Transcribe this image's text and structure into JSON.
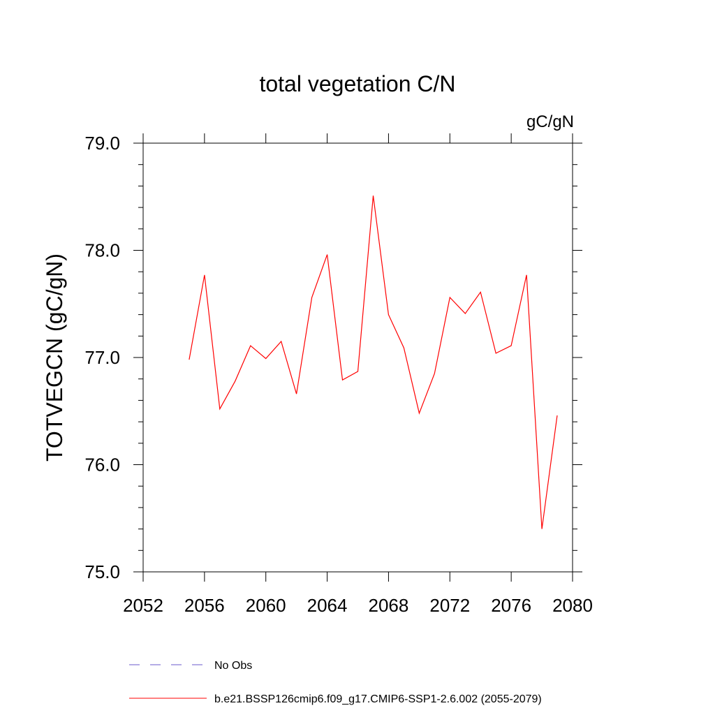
{
  "chart_data": {
    "type": "line",
    "title": "total vegetation C/N",
    "units_label": "gC/gN",
    "ylabel": "TOTVEGCN  (gC/gN)",
    "xlabel": "",
    "xlim": [
      2052,
      2080
    ],
    "ylim": [
      75.0,
      79.0
    ],
    "x_ticks": [
      2052,
      2056,
      2060,
      2064,
      2068,
      2072,
      2076,
      2080
    ],
    "x_tick_labels": [
      "2052",
      "2056",
      "2060",
      "2064",
      "2068",
      "2072",
      "2076",
      "2080"
    ],
    "y_ticks": [
      75.0,
      76.0,
      77.0,
      78.0,
      79.0
    ],
    "y_tick_labels": [
      "75.0",
      "76.0",
      "77.0",
      "78.0",
      "79.0"
    ],
    "grid": false,
    "legend_position": "bottom",
    "series": [
      {
        "name": "b.e21.BSSP126cmip6.f09_g17.CMIP6-SSP1-2.6.002 (2055-2079)",
        "color": "#ff0000",
        "style": "solid",
        "x": [
          2055,
          2056,
          2057,
          2058,
          2059,
          2060,
          2061,
          2062,
          2063,
          2064,
          2065,
          2066,
          2067,
          2068,
          2069,
          2070,
          2071,
          2072,
          2073,
          2074,
          2075,
          2076,
          2077,
          2078,
          2079
        ],
        "y": [
          76.98,
          77.77,
          76.52,
          76.78,
          77.11,
          76.99,
          77.15,
          76.66,
          77.56,
          77.96,
          76.79,
          76.87,
          78.51,
          77.4,
          77.09,
          76.48,
          76.85,
          77.56,
          77.41,
          77.61,
          77.04,
          77.11,
          77.77,
          75.4,
          76.46
        ]
      }
    ],
    "legend": [
      {
        "label": "No Obs",
        "color": "#6a5acd",
        "style": "dashed"
      },
      {
        "label": "b.e21.BSSP126cmip6.f09_g17.CMIP6-SSP1-2.6.002 (2055-2079)",
        "color": "#ff0000",
        "style": "solid"
      }
    ]
  }
}
